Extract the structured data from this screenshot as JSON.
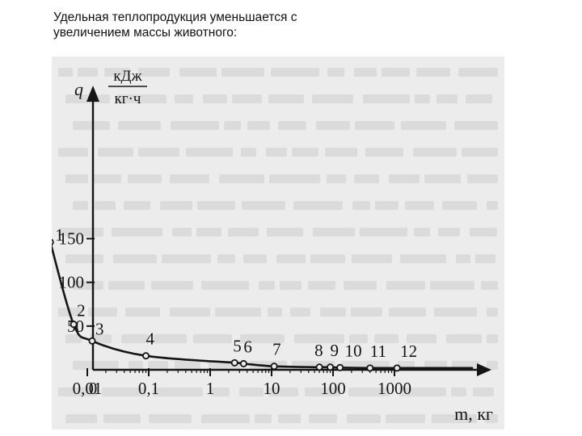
{
  "slide": {
    "title": "Удельная теплопродукция уменьшается с увеличением массы животного:"
  },
  "colors": {
    "background": "#ffffff",
    "scan_paper": "#ececec",
    "ink": "#151515",
    "ghost_text": "#b4b4b4"
  },
  "chart_data": {
    "type": "line",
    "title": "",
    "ylabel": {
      "symbol": "q",
      "unit_numerator": "кДж",
      "unit_denominator": "кг·ч"
    },
    "xlabel": "m, кг",
    "x_scale": "log",
    "x_ticks": [
      {
        "value": 0,
        "label": "0"
      },
      {
        "value": 0.01,
        "label": "0,01"
      },
      {
        "value": 0.1,
        "label": "0,1"
      },
      {
        "value": 1,
        "label": "1"
      },
      {
        "value": 10,
        "label": "10"
      },
      {
        "value": 100,
        "label": "100"
      },
      {
        "value": 1000,
        "label": "1000"
      }
    ],
    "y_ticks": [
      {
        "value": 50,
        "label": "50"
      },
      {
        "value": 100,
        "label": "100"
      },
      {
        "value": 150,
        "label": "150"
      }
    ],
    "ylim": [
      0,
      170
    ],
    "grid": false,
    "legend": "none",
    "series": [
      {
        "points": [
          {
            "label": "1",
            "x": 0.0025,
            "y": 146
          },
          {
            "label": "2",
            "x": 0.006,
            "y": 52
          },
          {
            "label": "3",
            "x": 0.012,
            "y": 33
          },
          {
            "label": "4",
            "x": 0.09,
            "y": 16
          },
          {
            "label": "5",
            "x": 2.5,
            "y": 8
          },
          {
            "label": "6",
            "x": 3.5,
            "y": 7
          },
          {
            "label": "7",
            "x": 11,
            "y": 4
          },
          {
            "label": "8",
            "x": 60,
            "y": 3
          },
          {
            "label": "9",
            "x": 90,
            "y": 3
          },
          {
            "label": "10",
            "x": 130,
            "y": 2.5
          },
          {
            "label": "11",
            "x": 400,
            "y": 2
          },
          {
            "label": "12",
            "x": 1100,
            "y": 2
          }
        ]
      }
    ]
  }
}
